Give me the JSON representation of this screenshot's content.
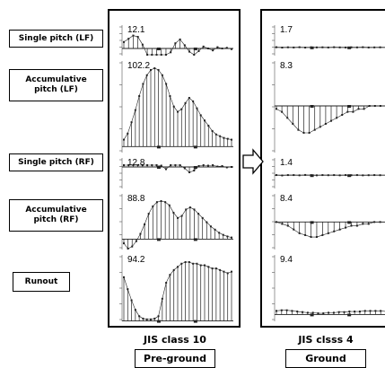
{
  "labels": {
    "single_lf": "Single pitch (LF)",
    "accum_lf": "Accumulative pitch (LF)",
    "single_rf": "Single pitch (RF)",
    "accum_rf": "Accumulative pitch (RF)",
    "runout": "Runout"
  },
  "panels": [
    {
      "class_label": "JIS class 10",
      "stage_label": "Pre-ground"
    },
    {
      "class_label": "JIS clsss 4",
      "stage_label": "Ground"
    }
  ],
  "colors": {
    "trace": "#222222",
    "axis": "#555555",
    "grid": "#bbbbbb"
  },
  "chart_data": [
    {
      "type": "bar",
      "title": "Pre-ground",
      "series": [
        {
          "name": "Single pitch (LF)",
          "peak_label": "12.1",
          "values": [
            1,
            1.5,
            2,
            1.8,
            0.6,
            -1,
            -2,
            -2.5,
            -2,
            -1,
            -0.6,
            0.8,
            1.4,
            0.5,
            -0.5,
            -1,
            -0.4,
            0.3,
            0,
            -0.3,
            0.2,
            0,
            0.1,
            -0.1
          ]
        },
        {
          "name": "Accumulative pitch (LF)",
          "peak_label": "102.2",
          "values": [
            8,
            15,
            28,
            42,
            58,
            72,
            82,
            88,
            90,
            88,
            82,
            72,
            58,
            46,
            40,
            43,
            50,
            56,
            52,
            44,
            36,
            30,
            24,
            18,
            14,
            12,
            10,
            9,
            8
          ]
        },
        {
          "name": "Single pitch (RF)",
          "peak_label": "12.8",
          "values": [
            0.5,
            1,
            1.8,
            1.5,
            0.4,
            1.6,
            2,
            1,
            0.3,
            -0.5,
            0.8,
            1.5,
            0.5,
            -0.3,
            -1.2,
            -0.8,
            0.2,
            0.6,
            0.3,
            0.4,
            0.1,
            0.2,
            -0.1,
            0
          ]
        },
        {
          "name": "Accumulative pitch (RF)",
          "peak_label": "88.8",
          "values": [
            -8,
            -18,
            -14,
            -4,
            10,
            28,
            48,
            62,
            70,
            72,
            70,
            64,
            50,
            40,
            44,
            56,
            60,
            56,
            48,
            40,
            32,
            24,
            18,
            12,
            8,
            5,
            3
          ]
        },
        {
          "name": "Runout",
          "peak_label": "94.2",
          "values": [
            55,
            40,
            26,
            14,
            6,
            3,
            2,
            2,
            3,
            6,
            28,
            48,
            58,
            64,
            68,
            72,
            74,
            74,
            72,
            72,
            70,
            70,
            68,
            66,
            66,
            64,
            62,
            60,
            62
          ]
        }
      ]
    },
    {
      "type": "bar",
      "title": "Ground",
      "series": [
        {
          "name": "Single pitch (LF)",
          "peak_label": "1.7",
          "values": [
            0.2,
            -0.2,
            0.1,
            -0.1,
            0.2,
            -0.2,
            0.1,
            0,
            0.1,
            -0.1,
            0.2,
            0,
            -0.1,
            0.1,
            0,
            0.2,
            -0.1,
            0,
            0.1,
            0
          ]
        },
        {
          "name": "Accumulative pitch (LF)",
          "peak_label": "8.3",
          "values": [
            -1,
            -2,
            -4,
            -6,
            -8,
            -9,
            -9,
            -8,
            -7,
            -6,
            -5,
            -4,
            -3,
            -2,
            -2,
            -1,
            -1,
            0,
            0,
            0,
            0
          ]
        },
        {
          "name": "Single pitch (RF)",
          "peak_label": "1.4",
          "values": [
            0.1,
            -0.2,
            0.1,
            0.1,
            -0.1,
            0.2,
            0,
            -0.1,
            0.1,
            0,
            0.1,
            -0.1,
            0.1,
            0,
            0.1,
            -0.1,
            0,
            0.1,
            0,
            0
          ]
        },
        {
          "name": "Accumulative pitch (RF)",
          "peak_label": "8.4",
          "values": [
            0,
            -1,
            -2,
            -4,
            -6,
            -7,
            -8,
            -8,
            -7,
            -6,
            -5,
            -4,
            -3,
            -2,
            -2,
            -1,
            -1,
            0,
            0,
            0
          ]
        },
        {
          "name": "Runout",
          "peak_label": "9.4",
          "values": [
            6,
            7,
            7,
            6,
            5,
            4,
            3,
            3,
            2,
            2,
            3,
            3,
            4,
            4,
            5,
            5,
            5,
            6,
            6,
            6,
            6,
            5
          ]
        }
      ]
    }
  ]
}
